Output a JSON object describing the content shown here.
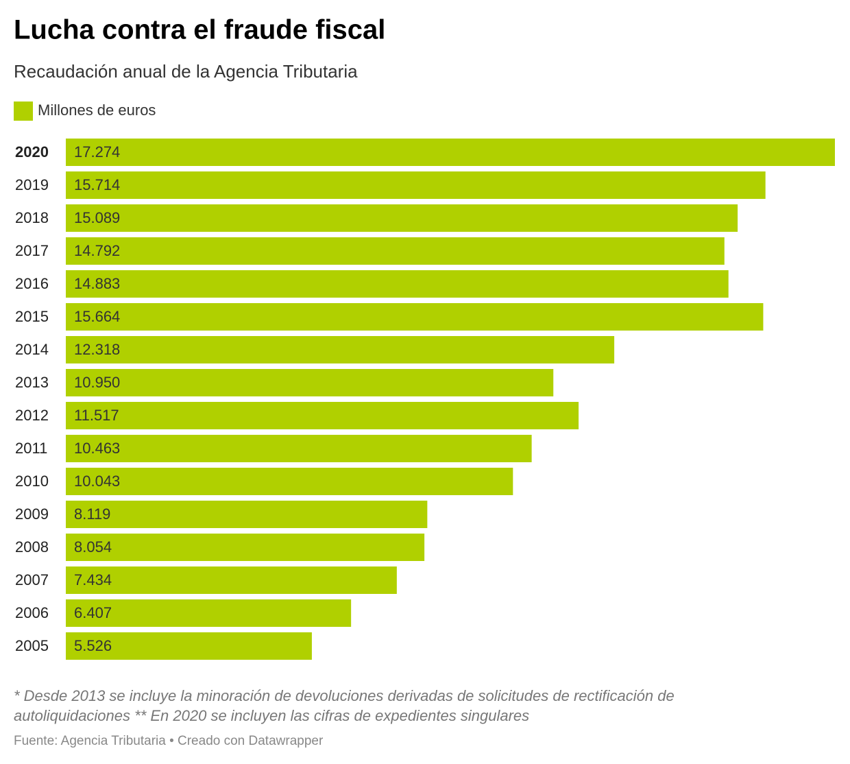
{
  "chart_data": {
    "type": "bar",
    "orientation": "horizontal",
    "title": "Lucha contra el fraude fiscal",
    "subtitle": "Recaudación anual de la Agencia Tributaria",
    "categories": [
      "2020",
      "2019",
      "2018",
      "2017",
      "2016",
      "2015",
      "2014",
      "2013",
      "2012",
      "2011",
      "2010",
      "2009",
      "2008",
      "2007",
      "2006",
      "2005"
    ],
    "series": [
      {
        "name": "Millones de euros",
        "color": "#b0d000",
        "values": [
          17274,
          15714,
          15089,
          14792,
          14883,
          15664,
          12318,
          10950,
          11517,
          10463,
          10043,
          8119,
          8054,
          7434,
          6407,
          5526
        ],
        "value_labels": [
          "17.274",
          "15.714",
          "15.089",
          "14.792",
          "14.883",
          "15.664",
          "12.318",
          "10.950",
          "11.517",
          "10.463",
          "10.043",
          "8.119",
          "8.054",
          "7.434",
          "6.407",
          "5.526"
        ]
      }
    ],
    "note": "* Desde 2013 se incluye la minoración de devoluciones derivadas de solicitudes de rectificación de autoliquidaciones ** En 2020 se incluyen las cifras de expedientes singulares",
    "source": "Fuente: Agencia Tributaria • Creado con Datawrapper"
  }
}
